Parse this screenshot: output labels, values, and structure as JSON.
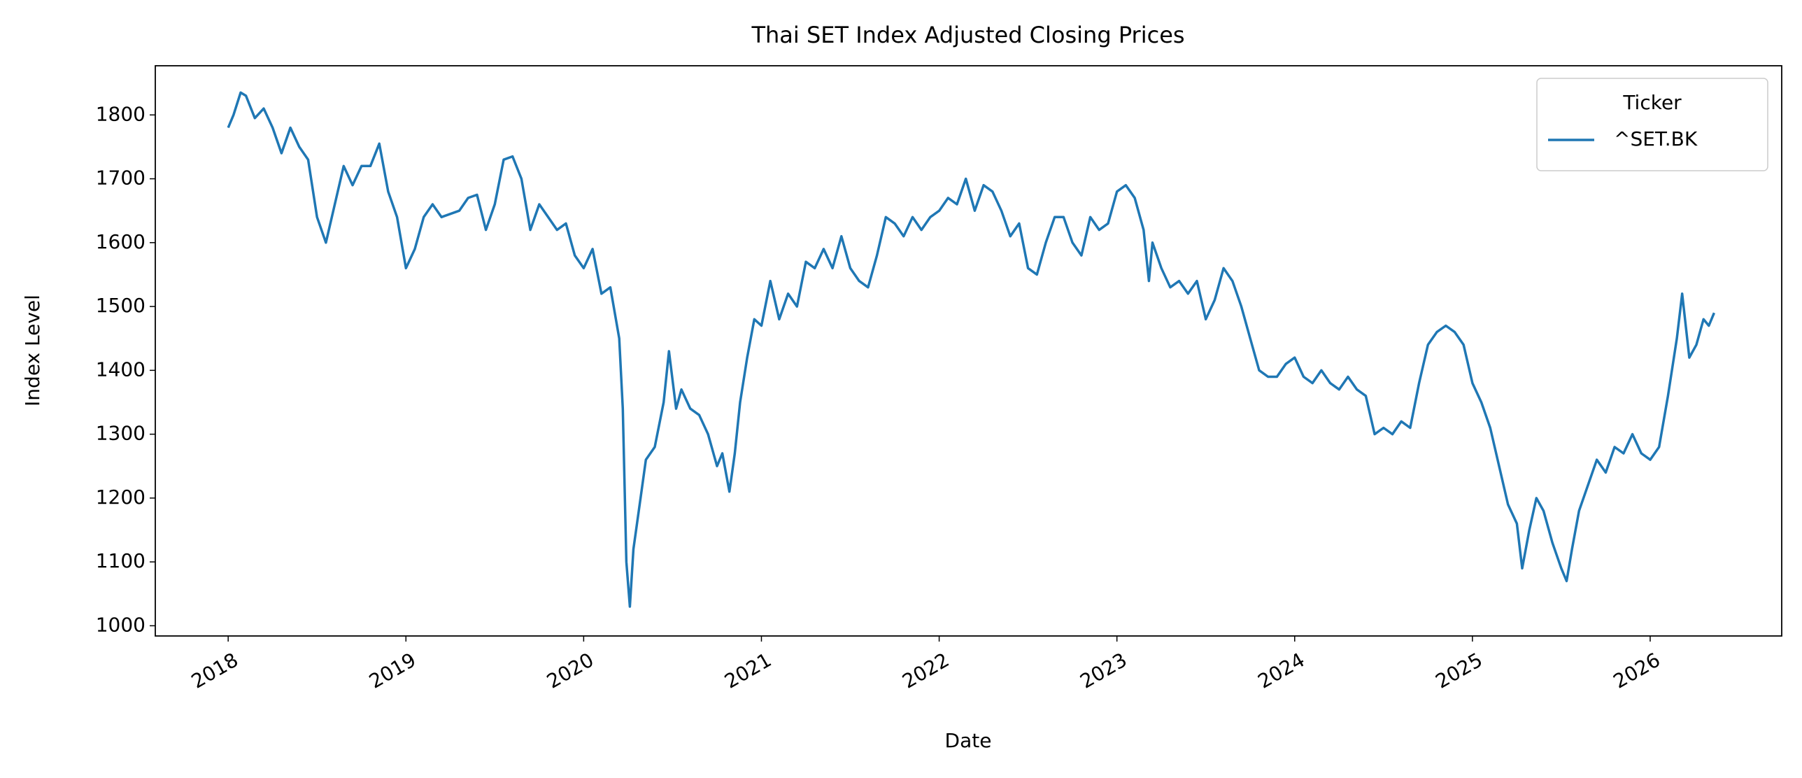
{
  "chart_data": {
    "type": "line",
    "title": "Thai SET Index Adjusted Closing Prices",
    "xlabel": "Date",
    "ylabel": "Index Level",
    "legend_title": "Ticker",
    "legend": "upper right",
    "xlim": [
      2017.59,
      2026.74
    ],
    "xticks": [
      2018,
      2019,
      2020,
      2021,
      2022,
      2023,
      2024,
      2025,
      2026
    ],
    "ylim": [
      984,
      1877
    ],
    "yticks": [
      1000,
      1100,
      1200,
      1300,
      1400,
      1500,
      1600,
      1700,
      1800
    ],
    "grid": false,
    "x": [
      2018.0,
      2018.03,
      2018.07,
      2018.1,
      2018.15,
      2018.2,
      2018.25,
      2018.3,
      2018.35,
      2018.4,
      2018.45,
      2018.5,
      2018.55,
      2018.6,
      2018.65,
      2018.7,
      2018.75,
      2018.8,
      2018.85,
      2018.9,
      2018.95,
      2019.0,
      2019.05,
      2019.1,
      2019.15,
      2019.2,
      2019.3,
      2019.35,
      2019.4,
      2019.45,
      2019.5,
      2019.55,
      2019.6,
      2019.65,
      2019.7,
      2019.75,
      2019.8,
      2019.85,
      2019.9,
      2019.95,
      2020.0,
      2020.05,
      2020.1,
      2020.15,
      2020.2,
      2020.22,
      2020.24,
      2020.26,
      2020.28,
      2020.32,
      2020.35,
      2020.4,
      2020.45,
      2020.48,
      2020.52,
      2020.55,
      2020.6,
      2020.65,
      2020.7,
      2020.75,
      2020.78,
      2020.82,
      2020.85,
      2020.88,
      2020.92,
      2020.96,
      2021.0,
      2021.05,
      2021.1,
      2021.15,
      2021.2,
      2021.25,
      2021.3,
      2021.35,
      2021.4,
      2021.45,
      2021.5,
      2021.55,
      2021.6,
      2021.65,
      2021.7,
      2021.75,
      2021.8,
      2021.85,
      2021.9,
      2021.95,
      2022.0,
      2022.05,
      2022.1,
      2022.15,
      2022.2,
      2022.25,
      2022.3,
      2022.35,
      2022.4,
      2022.45,
      2022.5,
      2022.55,
      2022.6,
      2022.65,
      2022.7,
      2022.75,
      2022.8,
      2022.85,
      2022.9,
      2022.95,
      2023.0,
      2023.05,
      2023.1,
      2023.15,
      2023.18,
      2023.2,
      2023.25,
      2023.3,
      2023.35,
      2023.4,
      2023.45,
      2023.5,
      2023.55,
      2023.6,
      2023.65,
      2023.7,
      2023.75,
      2023.8,
      2023.85,
      2023.9,
      2023.95,
      2024.0,
      2024.05,
      2024.1,
      2024.15,
      2024.2,
      2024.25,
      2024.3,
      2024.35,
      2024.4,
      2024.45,
      2024.5,
      2024.55,
      2024.6,
      2024.65,
      2024.7,
      2024.75,
      2024.8,
      2024.85,
      2024.9,
      2024.95,
      2025.0,
      2025.05,
      2025.1,
      2025.15,
      2025.2,
      2025.25,
      2025.28,
      2025.32,
      2025.36,
      2025.4,
      2025.45,
      2025.5,
      2025.53,
      2025.56,
      2025.6,
      2025.65,
      2025.7,
      2025.75,
      2025.8,
      2025.85,
      2025.9,
      2025.95,
      2026.0,
      2026.05,
      2026.1,
      2026.15,
      2026.18,
      2026.22,
      2026.26,
      2026.3,
      2026.33,
      2026.36
    ],
    "series": [
      {
        "name": "^SET.BK",
        "color": "#1f77b4",
        "values": [
          1780,
          1800,
          1835,
          1830,
          1795,
          1810,
          1780,
          1740,
          1780,
          1750,
          1730,
          1640,
          1600,
          1660,
          1720,
          1690,
          1720,
          1720,
          1755,
          1680,
          1640,
          1560,
          1590,
          1640,
          1660,
          1640,
          1650,
          1670,
          1675,
          1620,
          1660,
          1730,
          1735,
          1700,
          1620,
          1660,
          1640,
          1620,
          1630,
          1580,
          1560,
          1590,
          1520,
          1530,
          1450,
          1340,
          1100,
          1030,
          1120,
          1200,
          1260,
          1280,
          1350,
          1430,
          1340,
          1370,
          1340,
          1330,
          1300,
          1250,
          1270,
          1210,
          1270,
          1350,
          1420,
          1480,
          1470,
          1540,
          1480,
          1520,
          1500,
          1570,
          1560,
          1590,
          1560,
          1610,
          1560,
          1540,
          1530,
          1580,
          1640,
          1630,
          1610,
          1640,
          1620,
          1640,
          1650,
          1670,
          1660,
          1700,
          1650,
          1690,
          1680,
          1650,
          1610,
          1630,
          1560,
          1550,
          1600,
          1640,
          1640,
          1600,
          1580,
          1640,
          1620,
          1630,
          1680,
          1690,
          1670,
          1620,
          1540,
          1600,
          1560,
          1530,
          1540,
          1520,
          1540,
          1480,
          1510,
          1560,
          1540,
          1500,
          1450,
          1400,
          1390,
          1390,
          1410,
          1420,
          1390,
          1380,
          1400,
          1380,
          1370,
          1390,
          1370,
          1360,
          1300,
          1310,
          1300,
          1320,
          1310,
          1380,
          1440,
          1460,
          1470,
          1460,
          1440,
          1380,
          1350,
          1310,
          1250,
          1190,
          1160,
          1090,
          1150,
          1200,
          1180,
          1130,
          1090,
          1070,
          1120,
          1180,
          1220,
          1260,
          1240,
          1280,
          1270,
          1300,
          1270,
          1260,
          1280,
          1360,
          1450,
          1520,
          1420,
          1440,
          1480,
          1470,
          1490
        ]
      }
    ]
  }
}
